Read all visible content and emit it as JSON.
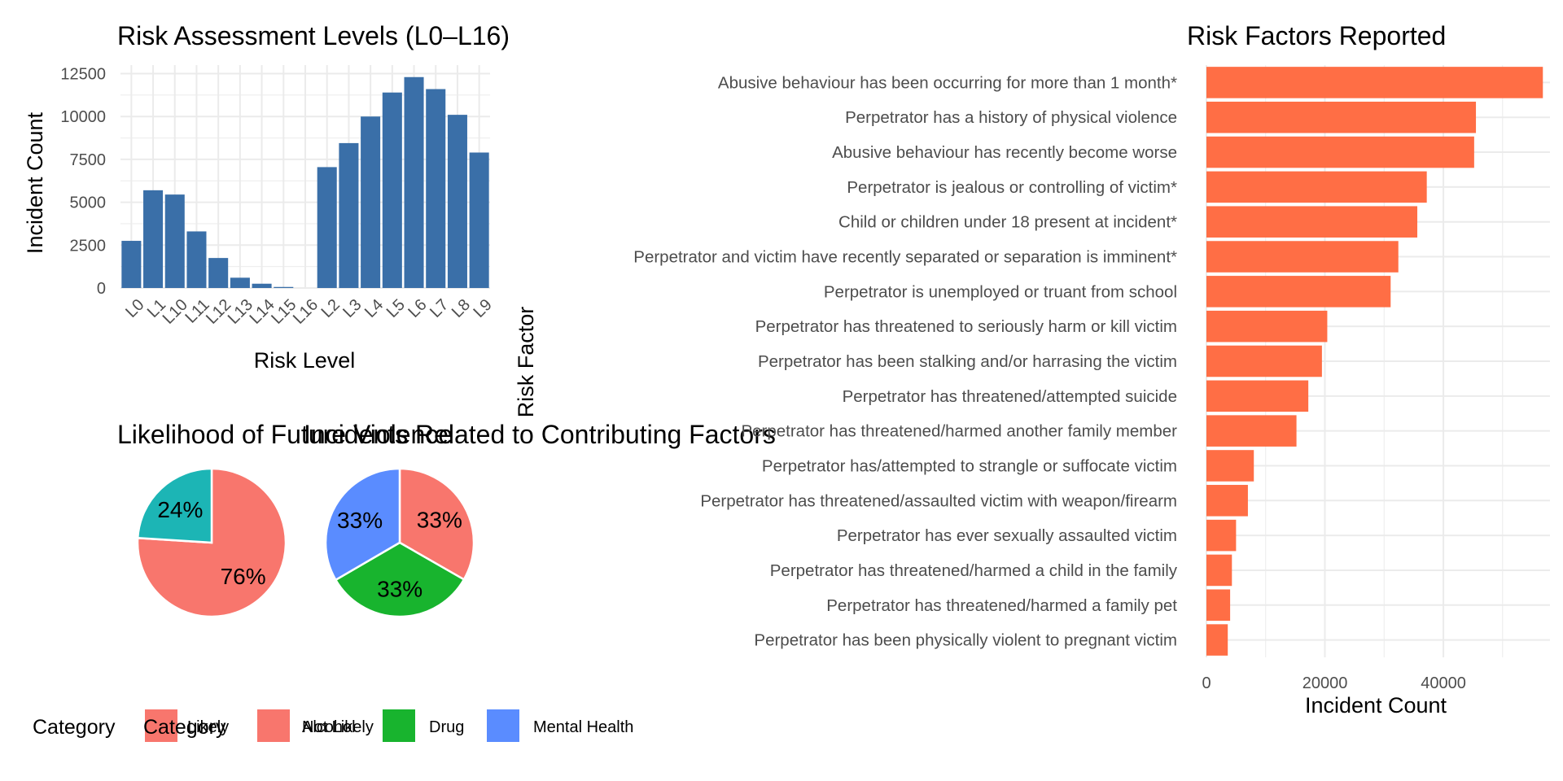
{
  "chart_data": [
    {
      "type": "bar",
      "title": "Risk Assessment Levels (L0–L16)",
      "xlabel": "Risk Level",
      "ylabel": "Incident Count",
      "categories": [
        "L0",
        "L1",
        "L10",
        "L11",
        "L12",
        "L13",
        "L14",
        "L15",
        "L16",
        "L2",
        "L3",
        "L4",
        "L5",
        "L6",
        "L7",
        "L8",
        "L9"
      ],
      "values": [
        2750,
        5700,
        5450,
        3300,
        1750,
        600,
        250,
        60,
        0,
        7050,
        8450,
        10000,
        11400,
        12300,
        11600,
        10100,
        7900
      ],
      "ylim": [
        0,
        13000
      ],
      "y_ticks": [
        0,
        2500,
        5000,
        7500,
        10000,
        12500
      ],
      "color": "#3a6fa8",
      "grid": true
    },
    {
      "type": "pie",
      "title": "Likelihood of Future Violence",
      "slices": [
        {
          "label": "Likely",
          "value": 76,
          "text": "76%",
          "color": "#f8766d"
        },
        {
          "label": "Not Likely",
          "value": 24,
          "text": "24%",
          "color": "#1cb5b5"
        }
      ],
      "legend_title": "Category",
      "legend_position": "bottom"
    },
    {
      "type": "pie",
      "title": "Incidents Related to Contributing Factors",
      "slices": [
        {
          "label": "Alcohol",
          "value": 33.3,
          "text": "33%",
          "color": "#f8766d"
        },
        {
          "label": "Drug",
          "value": 33.3,
          "text": "33%",
          "color": "#18b42e"
        },
        {
          "label": "Mental Health",
          "value": 33.4,
          "text": "33%",
          "color": "#5a8cff"
        }
      ],
      "legend_title": "Category",
      "legend_position": "bottom"
    },
    {
      "type": "bar",
      "orientation": "horizontal",
      "title": "Risk Factors Reported",
      "xlabel": "Incident Count",
      "ylabel": "Risk Factor",
      "categories": [
        "Abusive behaviour has been occurring for more than 1 month*",
        "Perpetrator has a history of physical violence",
        "Abusive behaviour has recently become worse",
        "Perpetrator is jealous or controlling of victim*",
        "Child or children under 18 present at incident*",
        "Perpetrator and victim have recently separated or separation is imminent*",
        "Perpetrator is unemployed or truant from school",
        "Perpetrator has threatened to seriously harm or kill victim",
        "Perpetrator has been stalking and/or harrasing the victim",
        "Perpetrator has threatened/attempted suicide",
        "Perpetrator has threatened/harmed another family member",
        "Perpetrator has/attempted to strangle or suffocate victim",
        "Perpetrator has threatened/assaulted victim with weapon/firearm",
        "Perpetrator has ever sexually assaulted victim",
        "Perpetrator has threatened/harmed a child in the family",
        "Perpetrator has threatened/harmed a family pet",
        "Perpetrator has been physically violent to pregnant victim"
      ],
      "values": [
        56800,
        45500,
        45200,
        37200,
        35600,
        32400,
        31100,
        20400,
        19500,
        17200,
        15200,
        8000,
        7000,
        5000,
        4300,
        4000,
        3600
      ],
      "xlim": [
        0,
        58000
      ],
      "x_ticks": [
        0,
        20000,
        40000
      ],
      "color": "#ff6e45",
      "grid": true
    }
  ]
}
